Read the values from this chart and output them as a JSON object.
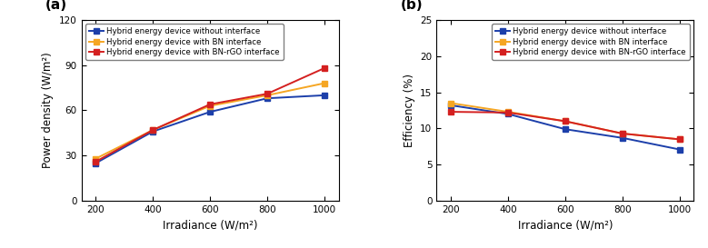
{
  "x": [
    200,
    400,
    600,
    800,
    1000
  ],
  "power_no_interface": [
    25,
    46,
    59,
    68,
    70
  ],
  "power_bn_interface": [
    28,
    47,
    63,
    70,
    78
  ],
  "power_bn_rgo_interface": [
    26,
    47,
    64,
    71,
    88
  ],
  "eff_no_interface": [
    13.2,
    12.0,
    9.9,
    8.7,
    7.1
  ],
  "eff_bn_interface": [
    13.5,
    12.3,
    11.0,
    9.3,
    8.5
  ],
  "eff_bn_rgo_interface": [
    12.3,
    12.2,
    11.0,
    9.3,
    8.5
  ],
  "color_blue": "#1c3faa",
  "color_orange": "#f5a623",
  "color_red": "#d42020",
  "label_no_interface": "Hybrid energy device without interface",
  "label_bn_interface": "Hybrid energy device with BN interface",
  "label_bn_rgo_interface": "Hybrid energy device with BN-rGO interface",
  "xlabel": "Irradiance (W/m²)",
  "ylabel_a": "Power density (W/m²)",
  "ylabel_b": "Efficiency (%)",
  "title_a": "(a)",
  "title_b": "(b)",
  "ylim_a": [
    0,
    120
  ],
  "yticks_a": [
    0,
    30,
    60,
    90,
    120
  ],
  "ylim_b": [
    0,
    25
  ],
  "yticks_b": [
    0,
    5,
    10,
    15,
    20,
    25
  ],
  "xlim": [
    150,
    1050
  ],
  "xticks": [
    200,
    400,
    600,
    800,
    1000
  ],
  "marker": "s",
  "markersize": 4,
  "linewidth": 1.4,
  "legend_fontsize": 6.2,
  "axis_label_fontsize": 8.5,
  "tick_fontsize": 7.5,
  "panel_label_fontsize": 11
}
